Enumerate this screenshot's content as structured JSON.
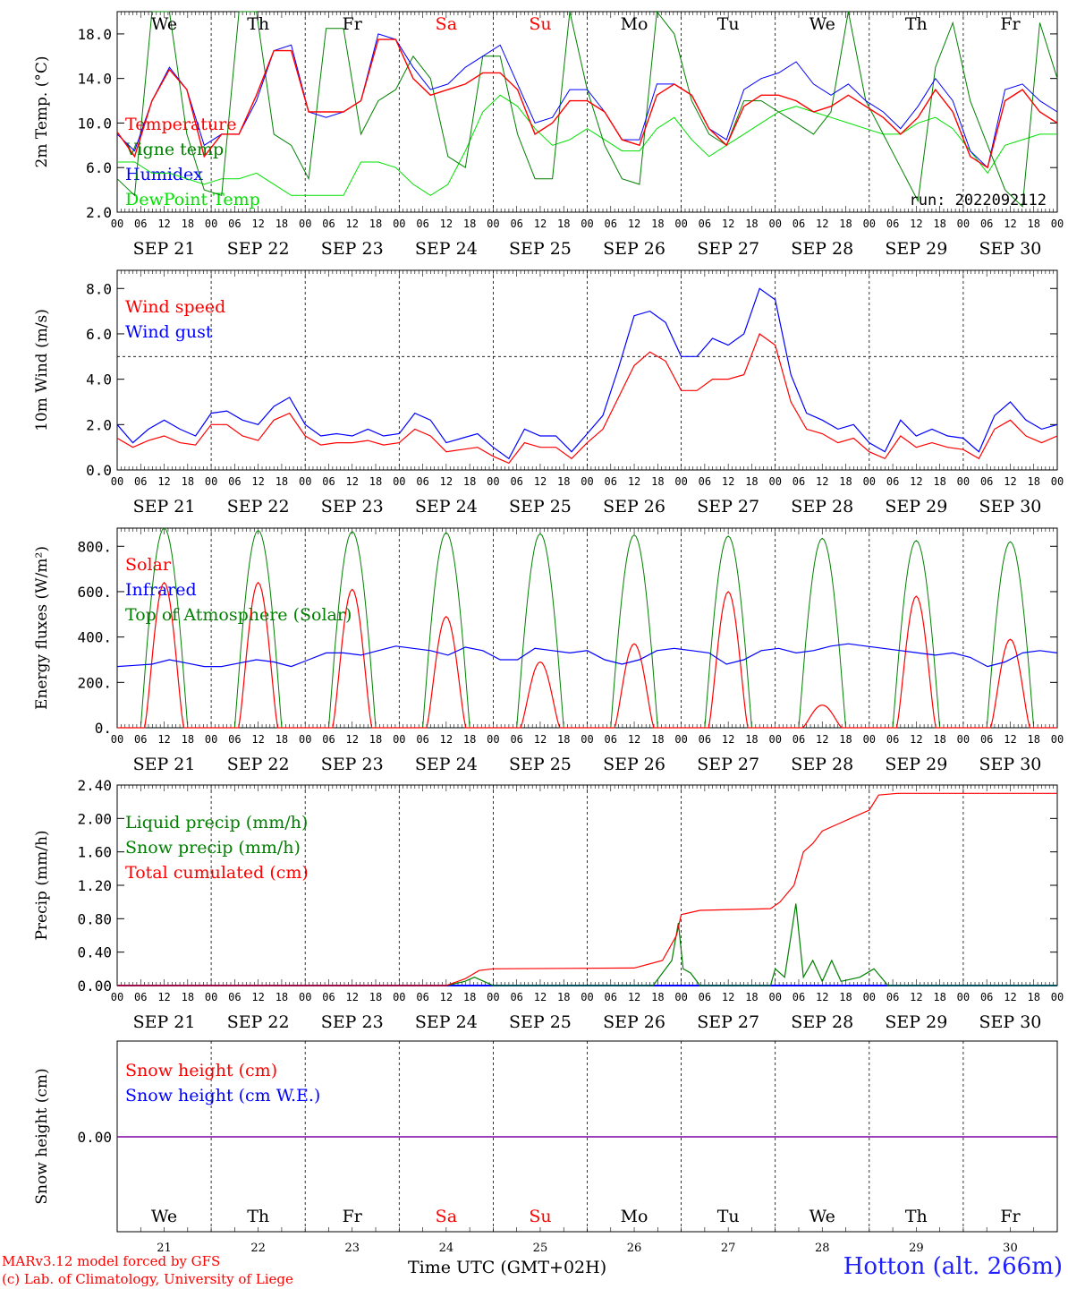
{
  "days": [
    "We",
    "Th",
    "Fr",
    "Sa",
    "Su",
    "Mo",
    "Tu",
    "We",
    "Th",
    "Fr"
  ],
  "weekend_days": [
    "Sa",
    "Su"
  ],
  "dates": [
    "SEP 21",
    "SEP 22",
    "SEP 23",
    "SEP 24",
    "SEP 25",
    "SEP 26",
    "SEP 27",
    "SEP 28",
    "SEP 29",
    "SEP 30"
  ],
  "day_numbers": [
    "21",
    "22",
    "23",
    "24",
    "25",
    "26",
    "27",
    "28",
    "29",
    "30"
  ],
  "hour_ticks": [
    "00",
    "06",
    "12",
    "18"
  ],
  "colors": {
    "red": "#ff0000",
    "blue": "#0000ff",
    "green": "#008000",
    "lightgreen": "#00e000",
    "purple": "#8000a0"
  },
  "footer": {
    "model": "MARv3.12 model forced by GFS",
    "copyright": "(c) Lab. of Climatology, University of Liege",
    "xlabel": "Time UTC (GMT+02H)",
    "station": "Hotton (alt. 266m)"
  },
  "chart_data": [
    {
      "type": "line",
      "ylabel": "2m Temp. (°C)",
      "ylim": [
        2,
        20
      ],
      "yticks": [
        "2.0",
        "6.0",
        "10.0",
        "14.0",
        "18.0"
      ],
      "run_label": "run: 2022092112",
      "legend": [
        "Temperature",
        "Vigne temp",
        "Humidex",
        "DewPoint Temp"
      ],
      "series": [
        {
          "name": "Temperature",
          "color": "#ff0000",
          "values": [
            9.2,
            7.0,
            12.0,
            14.8,
            13.0,
            7.0,
            9.0,
            9.0,
            12.5,
            16.5,
            16.5,
            11.0,
            11.0,
            11.0,
            12.0,
            17.5,
            17.5,
            14.0,
            12.5,
            13.0,
            13.5,
            14.5,
            14.5,
            13.0,
            9.0,
            10.0,
            12.0,
            12.0,
            11.0,
            8.5,
            8.0,
            12.5,
            13.5,
            12.5,
            9.5,
            8.0,
            11.5,
            12.5,
            12.5,
            12.0,
            11.0,
            11.5,
            12.5,
            11.5,
            10.5,
            9.0,
            10.5,
            13.0,
            11.0,
            7.0,
            6.0,
            12.0,
            13.0,
            11.0,
            10.0
          ]
        },
        {
          "name": "Vigne temp",
          "color": "#008000",
          "values": [
            5.0,
            3.5,
            20.0,
            20.0,
            9.0,
            4.0,
            3.5,
            20.0,
            20.0,
            9.0,
            8.0,
            5.0,
            18.5,
            18.5,
            9.0,
            12.0,
            13.0,
            16.0,
            14.0,
            7.0,
            6.0,
            16.0,
            16.0,
            9.0,
            5.0,
            5.0,
            20.0,
            13.0,
            8.0,
            5.0,
            4.5,
            20.0,
            18.0,
            12.0,
            9.0,
            8.0,
            12.0,
            12.0,
            11.0,
            10.0,
            9.0,
            11.0,
            20.0,
            12.0,
            9.0,
            6.0,
            3.0,
            15.0,
            19.0,
            12.0,
            8.0,
            4.0,
            2.5,
            19.0,
            14.0
          ]
        },
        {
          "name": "Humidex",
          "color": "#0000ff",
          "values": [
            9.0,
            7.5,
            12.0,
            15.0,
            13.0,
            8.0,
            9.0,
            9.0,
            12.0,
            16.5,
            17.0,
            11.0,
            10.5,
            11.0,
            12.0,
            18.0,
            17.5,
            15.0,
            13.0,
            13.5,
            15.0,
            16.0,
            17.0,
            13.5,
            10.0,
            10.5,
            13.0,
            13.0,
            11.0,
            8.5,
            8.5,
            13.5,
            13.5,
            12.5,
            9.5,
            8.5,
            13.0,
            14.0,
            14.5,
            15.5,
            13.5,
            12.5,
            13.5,
            12.0,
            11.0,
            9.5,
            11.5,
            14.0,
            12.0,
            7.5,
            6.0,
            13.0,
            13.5,
            12.0,
            11.0
          ]
        },
        {
          "name": "DewPoint Temp",
          "color": "#00e000",
          "values": [
            6.5,
            6.5,
            5.5,
            5.5,
            5.0,
            4.5,
            5.0,
            5.0,
            5.5,
            4.5,
            3.5,
            3.5,
            3.5,
            3.5,
            6.5,
            6.5,
            6.0,
            4.5,
            3.5,
            4.5,
            7.5,
            11.0,
            12.5,
            11.5,
            9.5,
            8.0,
            8.5,
            9.5,
            8.5,
            7.5,
            7.5,
            9.5,
            10.5,
            8.5,
            7.0,
            8.0,
            9.0,
            10.0,
            11.0,
            11.5,
            11.0,
            10.5,
            10.0,
            9.5,
            9.0,
            9.0,
            10.0,
            10.5,
            9.5,
            7.5,
            5.5,
            8.0,
            8.5,
            9.0,
            9.0
          ]
        }
      ]
    },
    {
      "type": "line",
      "ylabel": "10m Wind (m/s)",
      "ylim": [
        0,
        8.8
      ],
      "yticks": [
        "0.0",
        "2.0",
        "4.0",
        "6.0",
        "8.0"
      ],
      "threshold": 5.0,
      "legend": [
        "Wind speed",
        "Wind gust"
      ],
      "series": [
        {
          "name": "Wind speed",
          "color": "#ff0000",
          "values": [
            1.4,
            1.0,
            1.3,
            1.5,
            1.2,
            1.1,
            2.0,
            2.0,
            1.5,
            1.3,
            2.2,
            2.5,
            1.5,
            1.1,
            1.2,
            1.2,
            1.3,
            1.1,
            1.2,
            1.8,
            1.5,
            0.8,
            0.9,
            1.0,
            0.6,
            0.3,
            1.2,
            1.0,
            1.0,
            0.5,
            1.2,
            1.8,
            3.2,
            4.6,
            5.2,
            4.8,
            3.5,
            3.5,
            4.0,
            4.0,
            4.2,
            6.0,
            5.5,
            3.0,
            1.8,
            1.6,
            1.2,
            1.4,
            0.8,
            0.5,
            1.5,
            1.0,
            1.2,
            1.0,
            0.9,
            0.5,
            1.8,
            2.2,
            1.5,
            1.2,
            1.5
          ]
        },
        {
          "name": "Wind gust",
          "color": "#0000ff",
          "values": [
            2.0,
            1.2,
            1.8,
            2.2,
            1.8,
            1.5,
            2.5,
            2.6,
            2.2,
            2.0,
            2.8,
            3.2,
            2.0,
            1.5,
            1.6,
            1.5,
            1.8,
            1.5,
            1.6,
            2.5,
            2.2,
            1.2,
            1.4,
            1.6,
            1.0,
            0.5,
            1.8,
            1.5,
            1.5,
            0.8,
            1.6,
            2.4,
            4.5,
            6.8,
            7.0,
            6.5,
            5.0,
            5.0,
            5.8,
            5.5,
            6.0,
            8.0,
            7.5,
            4.2,
            2.5,
            2.2,
            1.8,
            2.0,
            1.2,
            0.8,
            2.2,
            1.5,
            1.8,
            1.5,
            1.4,
            0.8,
            2.4,
            3.0,
            2.2,
            1.8,
            2.0
          ]
        }
      ]
    },
    {
      "type": "line",
      "ylabel": "Energy fluxes (W/m²)",
      "ylim": [
        0,
        880
      ],
      "yticks": [
        "0.",
        "200.",
        "400.",
        "600.",
        "800."
      ],
      "legend": [
        "Solar",
        "Infrared",
        "Top of Atmosphere (Solar)"
      ],
      "toa_peaks": [
        880,
        870,
        865,
        860,
        855,
        850,
        845,
        835,
        825,
        820
      ],
      "solar_peaks": [
        640,
        640,
        610,
        490,
        290,
        370,
        600,
        100,
        580,
        390
      ],
      "series": [
        {
          "name": "Infrared",
          "color": "#0000ff",
          "values": [
            270,
            275,
            280,
            300,
            285,
            270,
            270,
            285,
            300,
            290,
            270,
            300,
            330,
            330,
            320,
            340,
            360,
            350,
            340,
            320,
            355,
            340,
            300,
            300,
            350,
            340,
            330,
            340,
            300,
            280,
            300,
            340,
            350,
            340,
            330,
            280,
            300,
            340,
            350,
            330,
            340,
            360,
            370,
            360,
            350,
            340,
            330,
            320,
            330,
            310,
            270,
            290,
            330,
            340,
            330
          ]
        }
      ]
    },
    {
      "type": "line",
      "ylabel": "Precip (mm/h)",
      "ylim": [
        0,
        2.4
      ],
      "yticks": [
        "0.00",
        "0.40",
        "0.80",
        "1.20",
        "1.60",
        "2.00",
        "2.40"
      ],
      "legend": [
        "Liquid precip (mm/h)",
        "Snow precip (mm/h)",
        "Total cumulated (cm)"
      ],
      "series": [
        {
          "name": "Total cumulated (cm)",
          "color": "#ff0000",
          "points": [
            [
              0,
              0
            ],
            [
              3.5,
              0
            ],
            [
              3.7,
              0.08
            ],
            [
              3.85,
              0.18
            ],
            [
              4.0,
              0.2
            ],
            [
              5.5,
              0.21
            ],
            [
              5.8,
              0.3
            ],
            [
              5.95,
              0.6
            ],
            [
              6.0,
              0.85
            ],
            [
              6.2,
              0.9
            ],
            [
              6.95,
              0.92
            ],
            [
              7.05,
              1.0
            ],
            [
              7.2,
              1.2
            ],
            [
              7.3,
              1.6
            ],
            [
              7.4,
              1.7
            ],
            [
              7.5,
              1.85
            ],
            [
              7.7,
              1.95
            ],
            [
              7.8,
              2.0
            ],
            [
              8.0,
              2.1
            ],
            [
              8.1,
              2.28
            ],
            [
              8.3,
              2.3
            ],
            [
              10.0,
              2.3
            ]
          ]
        },
        {
          "name": "Liquid precip (mm/h)",
          "color": "#008000",
          "points": [
            [
              0,
              0
            ],
            [
              3.5,
              0
            ],
            [
              3.7,
              0.05
            ],
            [
              3.8,
              0.1
            ],
            [
              3.9,
              0.05
            ],
            [
              4.0,
              0
            ],
            [
              5.7,
              0
            ],
            [
              5.8,
              0.15
            ],
            [
              5.9,
              0.3
            ],
            [
              5.97,
              0.75
            ],
            [
              6.02,
              0.2
            ],
            [
              6.1,
              0.15
            ],
            [
              6.2,
              0
            ],
            [
              6.95,
              0
            ],
            [
              7.0,
              0.2
            ],
            [
              7.1,
              0.1
            ],
            [
              7.22,
              0.98
            ],
            [
              7.3,
              0.1
            ],
            [
              7.4,
              0.3
            ],
            [
              7.5,
              0.05
            ],
            [
              7.6,
              0.3
            ],
            [
              7.7,
              0.05
            ],
            [
              7.9,
              0.1
            ],
            [
              8.05,
              0.2
            ],
            [
              8.2,
              0
            ],
            [
              10.0,
              0
            ]
          ]
        }
      ]
    },
    {
      "type": "line",
      "ylabel": "Snow height (cm)",
      "yticks": [
        "0.00"
      ],
      "legend": [
        "Snow height (cm)",
        "Snow height (cm W.E.)"
      ],
      "series": [
        {
          "name": "Snow height (cm)",
          "color": "#ff0000",
          "values": [
            0,
            0
          ]
        },
        {
          "name": "Snow height (cm W.E.)",
          "color": "#0000ff",
          "values": [
            0,
            0
          ]
        }
      ]
    }
  ]
}
